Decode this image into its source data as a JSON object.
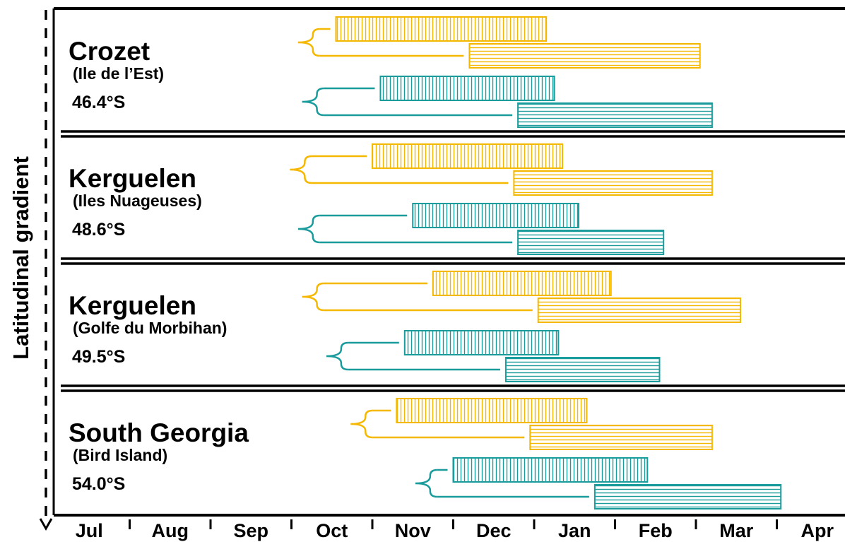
{
  "chart_data": {
    "type": "gantt",
    "y_axis_label": "Latitudinal gradient",
    "x_axis": {
      "ticks": [
        "Jul",
        "Aug",
        "Sep",
        "Oct",
        "Nov",
        "Dec",
        "Jan",
        "Feb",
        "Mar",
        "Apr"
      ]
    },
    "colors": {
      "yellow": "#F5B800",
      "teal": "#1A9C9C"
    },
    "panels": [
      {
        "name": "Crozet",
        "sub": "(Ile de l’Est)",
        "lat": "46.4°S",
        "groups": [
          {
            "color": "yellow",
            "split": 3.3,
            "bars": [
              {
                "pattern": "vertical",
                "start": 3.55,
                "end": 6.15
              },
              {
                "pattern": "horizontal",
                "start": 5.2,
                "end": 8.05
              }
            ]
          },
          {
            "color": "teal",
            "split": 3.35,
            "bars": [
              {
                "pattern": "vertical",
                "start": 4.1,
                "end": 6.25
              },
              {
                "pattern": "horizontal",
                "start": 5.8,
                "end": 8.2
              }
            ]
          }
        ]
      },
      {
        "name": "Kerguelen",
        "sub": "(Iles Nuageuses)",
        "lat": "48.6°S",
        "groups": [
          {
            "color": "yellow",
            "split": 3.2,
            "bars": [
              {
                "pattern": "vertical",
                "start": 4.0,
                "end": 6.35
              },
              {
                "pattern": "horizontal",
                "start": 5.75,
                "end": 8.2
              }
            ]
          },
          {
            "color": "teal",
            "split": 3.3,
            "bars": [
              {
                "pattern": "vertical",
                "start": 4.5,
                "end": 6.55
              },
              {
                "pattern": "horizontal",
                "start": 5.8,
                "end": 7.6
              }
            ]
          }
        ]
      },
      {
        "name": "Kerguelen",
        "sub": "(Golfe du Morbihan)",
        "lat": "49.5°S",
        "groups": [
          {
            "color": "yellow",
            "split": 3.35,
            "bars": [
              {
                "pattern": "vertical",
                "start": 4.75,
                "end": 6.95
              },
              {
                "pattern": "horizontal",
                "start": 6.05,
                "end": 8.55
              }
            ]
          },
          {
            "color": "teal",
            "split": 3.65,
            "bars": [
              {
                "pattern": "vertical",
                "start": 4.4,
                "end": 6.3
              },
              {
                "pattern": "horizontal",
                "start": 5.65,
                "end": 7.55
              }
            ]
          }
        ]
      },
      {
        "name": "South Georgia",
        "sub": "(Bird Island)",
        "lat": "54.0°S",
        "groups": [
          {
            "color": "yellow",
            "split": 3.95,
            "bars": [
              {
                "pattern": "vertical",
                "start": 4.3,
                "end": 6.65
              },
              {
                "pattern": "horizontal",
                "start": 5.95,
                "end": 8.2
              }
            ]
          },
          {
            "color": "teal",
            "split": 4.75,
            "bars": [
              {
                "pattern": "vertical",
                "start": 5.0,
                "end": 7.4
              },
              {
                "pattern": "horizontal",
                "start": 6.75,
                "end": 9.05
              }
            ]
          }
        ]
      }
    ]
  }
}
